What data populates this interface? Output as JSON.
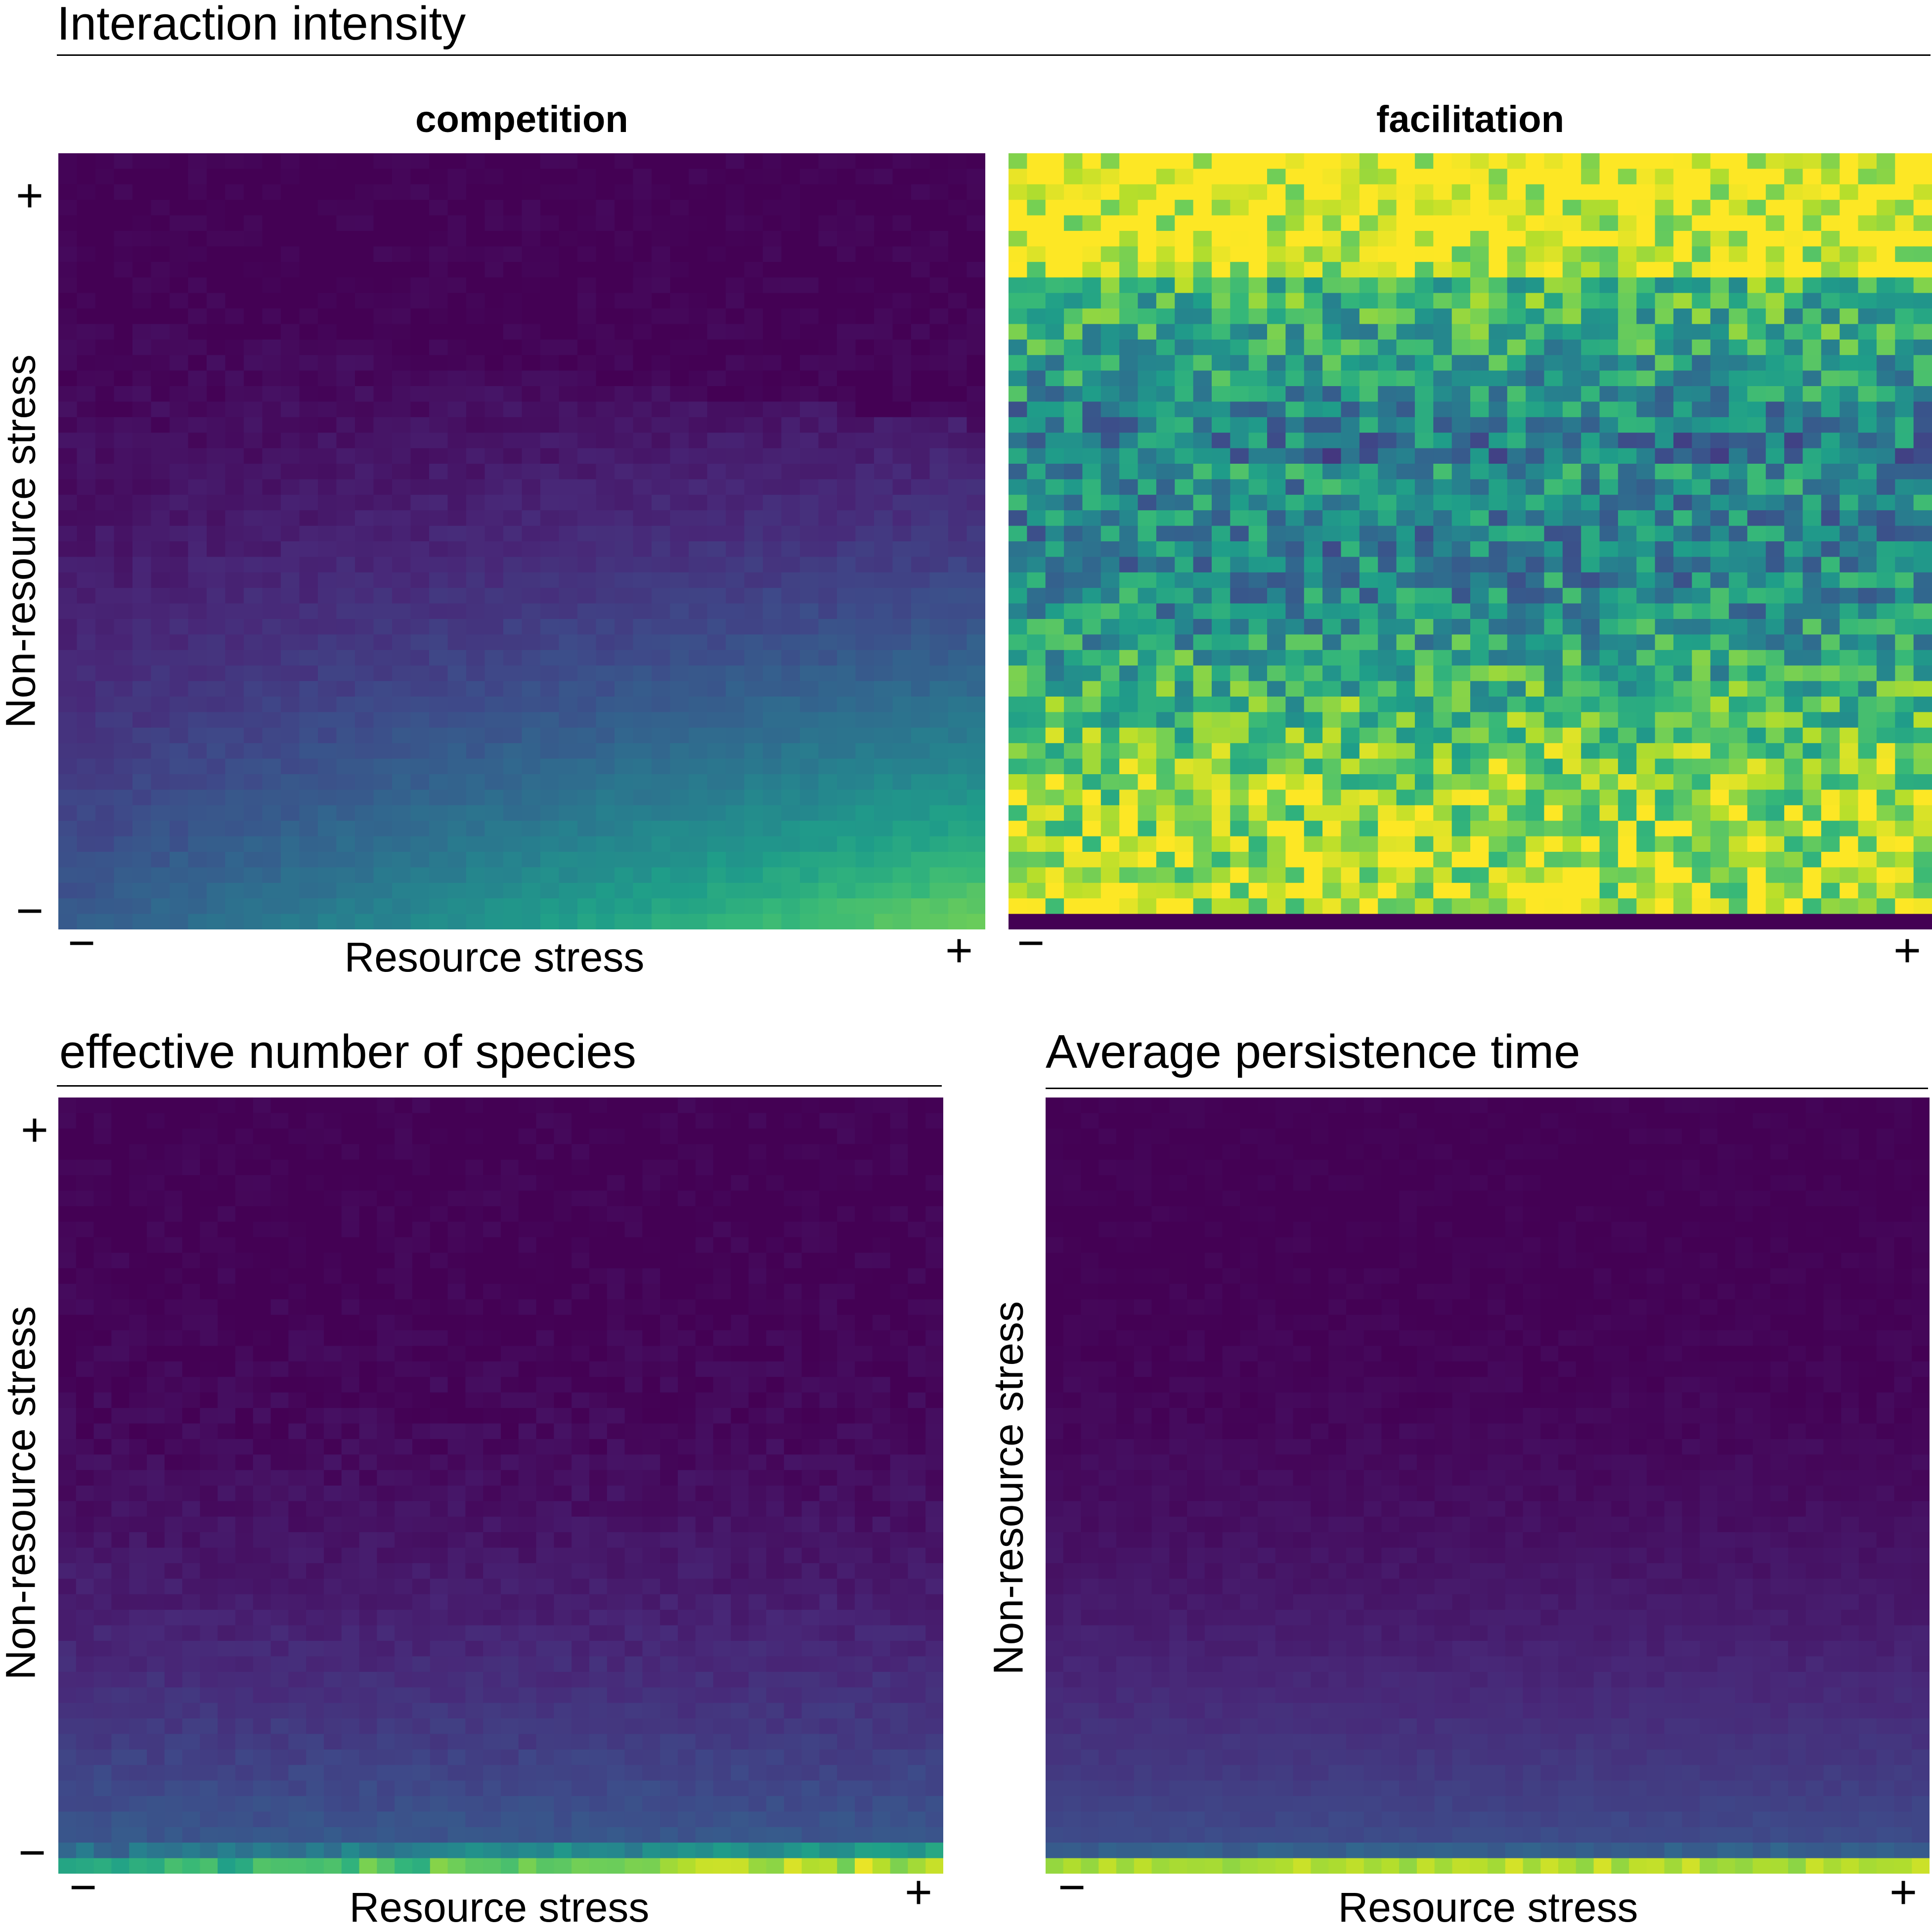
{
  "colormap": {
    "name": "viridis",
    "range": [
      0,
      1
    ]
  },
  "sections": {
    "interaction": {
      "title": "Interaction intensity"
    },
    "species": {
      "title": "effective number of species"
    },
    "persistence": {
      "title": "Average persistence time"
    }
  },
  "axes": {
    "xlabel": "Resource stress",
    "ylabel": "Non-resource stress",
    "minus": "−",
    "plus": "+"
  },
  "chart_data": [
    {
      "type": "heatmap",
      "id": "competition",
      "title": "competition",
      "xlabel": "Resource stress",
      "ylabel": "Non-resource stress",
      "xticks": [
        "−",
        "+"
      ],
      "yticks": [
        "+",
        "−"
      ],
      "grid": [
        50,
        50
      ],
      "value_range": [
        0,
        1
      ],
      "pattern": "values near 0 at high non-resource stress; rising toward low non-resource stress and high resource stress; max about 0.75 at bottom-right",
      "sample_points": [
        {
          "resource": "−",
          "nonresource": "+",
          "value": 0.0
        },
        {
          "resource": "+",
          "nonresource": "+",
          "value": 0.02
        },
        {
          "resource": "−",
          "nonresource": "−",
          "value": 0.38
        },
        {
          "resource": "+",
          "nonresource": "−",
          "value": 0.75
        }
      ]
    },
    {
      "type": "heatmap",
      "id": "facilitation",
      "title": "facilitation",
      "xticks": [
        "−",
        "+"
      ],
      "yticks": [
        "+",
        "−"
      ],
      "grid": [
        50,
        50
      ],
      "value_range": [
        0,
        1
      ],
      "pattern": "high values (about 0.75–0.95) at high non-resource stress, lower and noisy (0.3–0.6) in the middle, high (0.85–0.95) toward low non-resource stress; bottom row near 0",
      "sample_points": [
        {
          "resource": "−",
          "nonresource": "+",
          "value": 0.85
        },
        {
          "resource": "mid",
          "nonresource": "mid",
          "value": 0.5
        },
        {
          "resource": "+",
          "nonresource": "−",
          "value": 0.9
        },
        {
          "resource": "any",
          "nonresource": "lowest row",
          "value": 0.0
        }
      ]
    },
    {
      "type": "heatmap",
      "id": "species",
      "xlabel": "Resource stress",
      "ylabel": "Non-resource stress",
      "xticks": [
        "−",
        "+"
      ],
      "yticks": [
        "+",
        "−"
      ],
      "grid": [
        50,
        50
      ],
      "value_range": [
        0,
        1
      ],
      "pattern": "near 0 at high non-resource stress, slowly increasing downward; bottom rows 0.5–0.95, largest at high resource stress",
      "sample_points": [
        {
          "resource": "−",
          "nonresource": "+",
          "value": 0.02
        },
        {
          "resource": "mid",
          "nonresource": "mid",
          "value": 0.08
        },
        {
          "resource": "−",
          "nonresource": "−",
          "value": 0.6
        },
        {
          "resource": "+",
          "nonresource": "−",
          "value": 0.95
        }
      ]
    },
    {
      "type": "heatmap",
      "id": "persistence",
      "xlabel": "Resource stress",
      "ylabel": "Non-resource stress",
      "xticks": [
        "−",
        "+"
      ],
      "yticks": [
        "+",
        "−"
      ],
      "grid": [
        50,
        50
      ],
      "value_range": [
        0,
        1
      ],
      "pattern": "near 0 at high non-resource stress, gradually increasing downward to about 0.3; bottom row about 0.9",
      "sample_points": [
        {
          "resource": "−",
          "nonresource": "+",
          "value": 0.0
        },
        {
          "resource": "mid",
          "nonresource": "mid",
          "value": 0.05
        },
        {
          "resource": "any",
          "nonresource": "second-lowest row",
          "value": 0.3
        },
        {
          "resource": "any",
          "nonresource": "lowest row",
          "value": 0.9
        }
      ]
    }
  ]
}
